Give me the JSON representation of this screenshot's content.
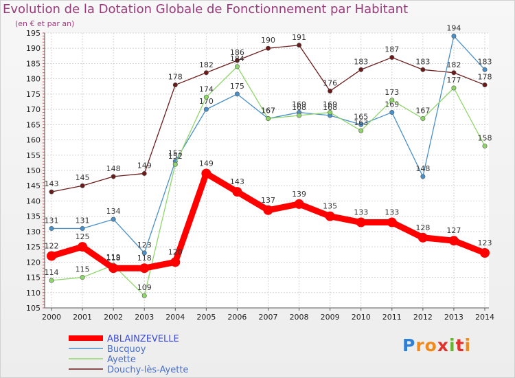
{
  "chart_data": {
    "type": "line",
    "title": "Evolution de la Dotation Globale de Fonctionnement par Habitant",
    "subtitle": "(en € et par an)",
    "x": [
      "2000",
      "2001",
      "2002",
      "2003",
      "2004",
      "2005",
      "2006",
      "2007",
      "2008",
      "2009",
      "2010",
      "2011",
      "2012",
      "2013",
      "2014"
    ],
    "ylim": [
      105,
      195
    ],
    "yticks": [
      105,
      110,
      115,
      120,
      125,
      130,
      135,
      140,
      145,
      150,
      155,
      160,
      165,
      170,
      175,
      180,
      185,
      190,
      195
    ],
    "grid": true,
    "series": [
      {
        "name": "ABLAINZEVELLE",
        "color": "#ff0000",
        "values": [
          122,
          125,
          118,
          118,
          120,
          149,
          143,
          137,
          139,
          135,
          133,
          133,
          128,
          127,
          123
        ]
      },
      {
        "name": "Bucquoy",
        "color": "#4a90c8",
        "values": [
          131,
          131,
          134,
          123,
          153,
          170,
          175,
          167,
          169,
          168,
          165,
          169,
          148,
          194,
          183
        ]
      },
      {
        "name": "Ayette",
        "color": "#8fd66a",
        "values": [
          114,
          115,
          119,
          109,
          152,
          174,
          184,
          167,
          168,
          169,
          163,
          173,
          167,
          177,
          158
        ]
      },
      {
        "name": "Douchy-lès-Ayette",
        "color": "#6b1a1a",
        "values": [
          143,
          145,
          148,
          149,
          178,
          182,
          186,
          190,
          191,
          176,
          183,
          187,
          183,
          182,
          178
        ]
      }
    ]
  },
  "brand": {
    "letters": [
      "P",
      "r",
      "o",
      "x",
      "i",
      "t",
      "i"
    ],
    "colors": [
      "#2f7fd6",
      "#f08a1c",
      "#f08a1c",
      "#e0332e",
      "#66b332",
      "#e0332e",
      "#f08a1c"
    ]
  }
}
